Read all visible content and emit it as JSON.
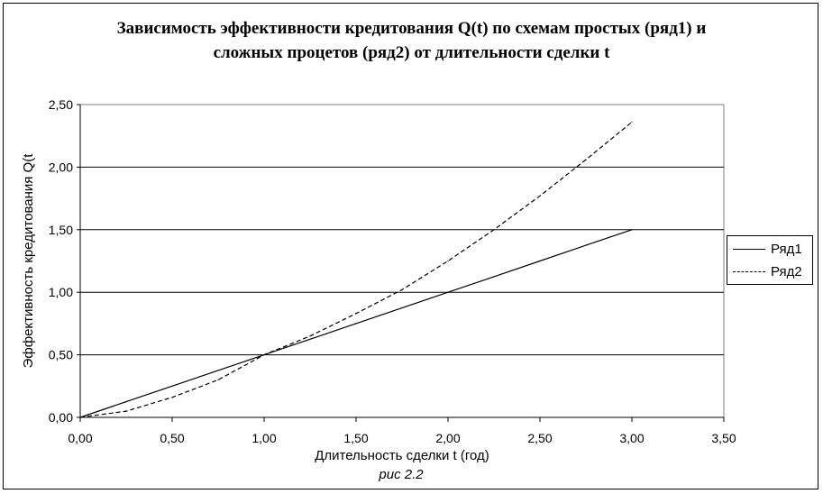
{
  "chart_data": {
    "type": "line",
    "title_line1": "Зависимость эффективности кредитования  Q(t) по схемам простых (ряд1) и",
    "title_line2": "сложных процетов (ряд2) от длительности сделки t",
    "xlabel": "Длительность сделки t (год)",
    "ylabel": "Эффективность кредитования Q(t",
    "xlim": [
      0,
      3.5
    ],
    "ylim": [
      0,
      2.5
    ],
    "x_ticks": [
      "0,00",
      "0,50",
      "1,00",
      "1,50",
      "2,00",
      "2,50",
      "3,00",
      "3,50"
    ],
    "y_ticks": [
      "0,00",
      "0,50",
      "1,00",
      "1,50",
      "2,00",
      "2,50"
    ],
    "grid": "horizontal",
    "legend_placement": "right",
    "series": [
      {
        "name": "Ряд1",
        "style": "solid",
        "color": "#000000",
        "x": [
          0,
          0.25,
          0.5,
          0.75,
          1.0,
          1.25,
          1.5,
          1.75,
          2.0,
          2.25,
          2.5,
          2.75,
          3.0
        ],
        "y": [
          0,
          0.125,
          0.25,
          0.375,
          0.5,
          0.625,
          0.75,
          0.875,
          1.0,
          1.125,
          1.25,
          1.375,
          1.5
        ]
      },
      {
        "name": "Ряд2",
        "style": "dashed",
        "color": "#000000",
        "x": [
          0,
          0.25,
          0.5,
          0.75,
          1.0,
          1.25,
          1.5,
          1.75,
          2.0,
          2.25,
          2.5,
          2.75,
          3.0
        ],
        "y": [
          0,
          0.05,
          0.16,
          0.3,
          0.5,
          0.65,
          0.83,
          1.02,
          1.25,
          1.5,
          1.77,
          2.06,
          2.36
        ]
      }
    ]
  },
  "caption": "рис 2.2"
}
